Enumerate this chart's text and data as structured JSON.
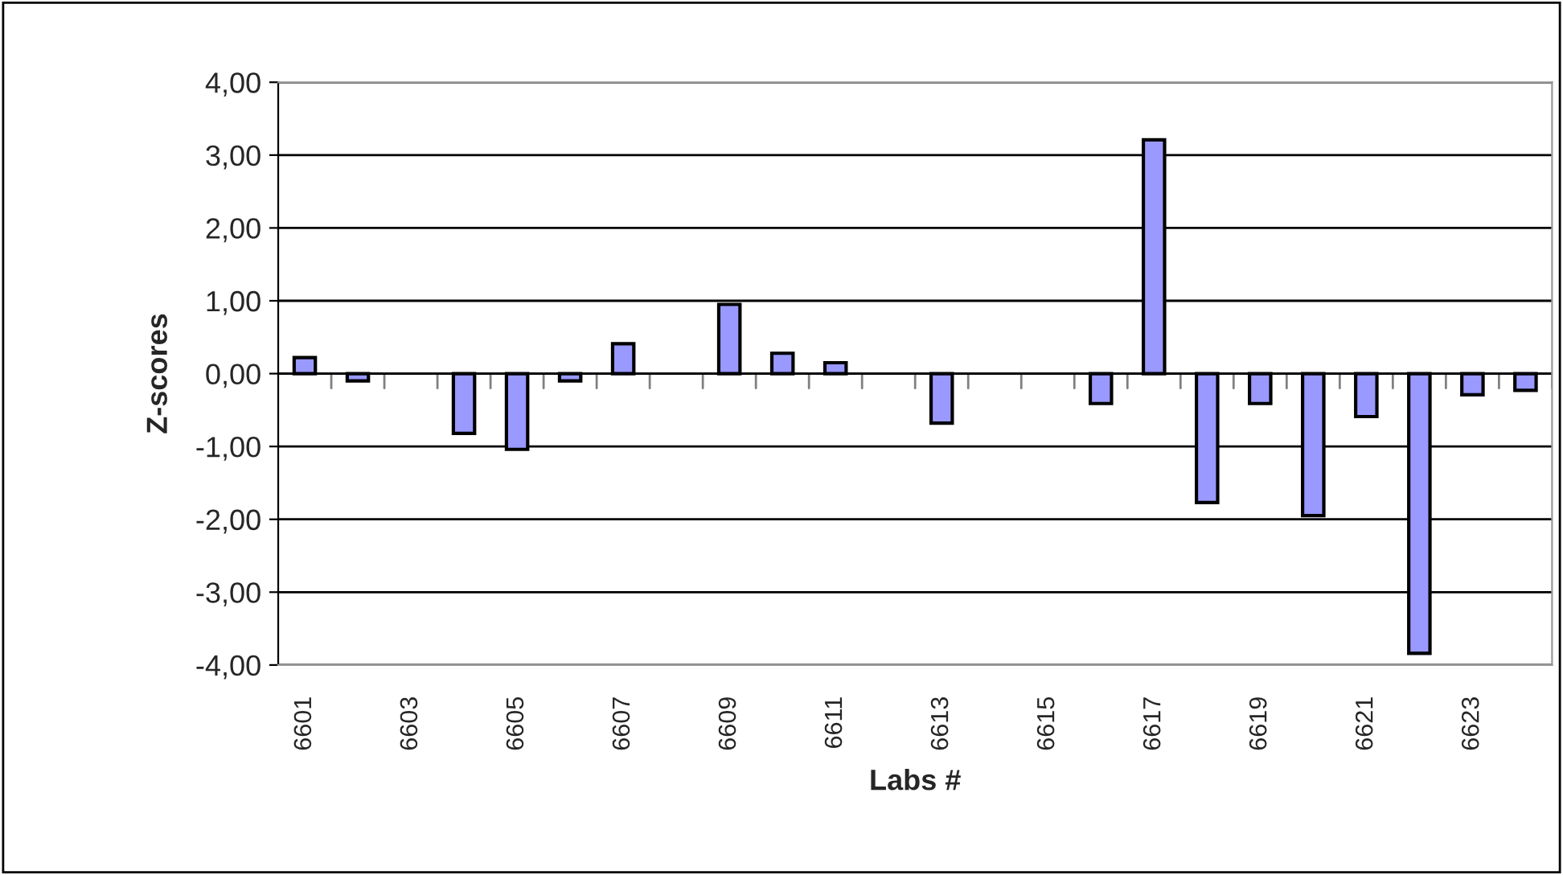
{
  "chart_data": {
    "type": "bar",
    "xlabel": "Labs #",
    "ylabel": "Z-scores",
    "categories": [
      "6601",
      null,
      "6603",
      null,
      "6605",
      null,
      "6607",
      null,
      "6609",
      null,
      "6611",
      null,
      "6613",
      null,
      "6615",
      null,
      "6617",
      null,
      "6619",
      null,
      "6621",
      null,
      "6623",
      null
    ],
    "values": [
      0.22,
      -0.1,
      null,
      -0.82,
      -1.04,
      -0.1,
      0.41,
      null,
      0.95,
      0.28,
      0.15,
      null,
      -0.68,
      null,
      null,
      -0.41,
      3.21,
      -1.77,
      -0.41,
      -1.95,
      -0.59,
      -3.84,
      -0.29,
      -0.23
    ],
    "color": "#9999ff",
    "ylim": [
      -4,
      4
    ],
    "yticks": [
      {
        "value": -4,
        "label": "-4,00"
      },
      {
        "value": -3,
        "label": "-3,00"
      },
      {
        "value": -2,
        "label": "-2,00"
      },
      {
        "value": -1,
        "label": "-1,00"
      },
      {
        "value": 0,
        "label": "0,00"
      },
      {
        "value": 1,
        "label": "1,00"
      },
      {
        "value": 2,
        "label": "2,00"
      },
      {
        "value": 3,
        "label": "3,00"
      },
      {
        "value": 4,
        "label": "4,00"
      }
    ],
    "grid": "y"
  }
}
